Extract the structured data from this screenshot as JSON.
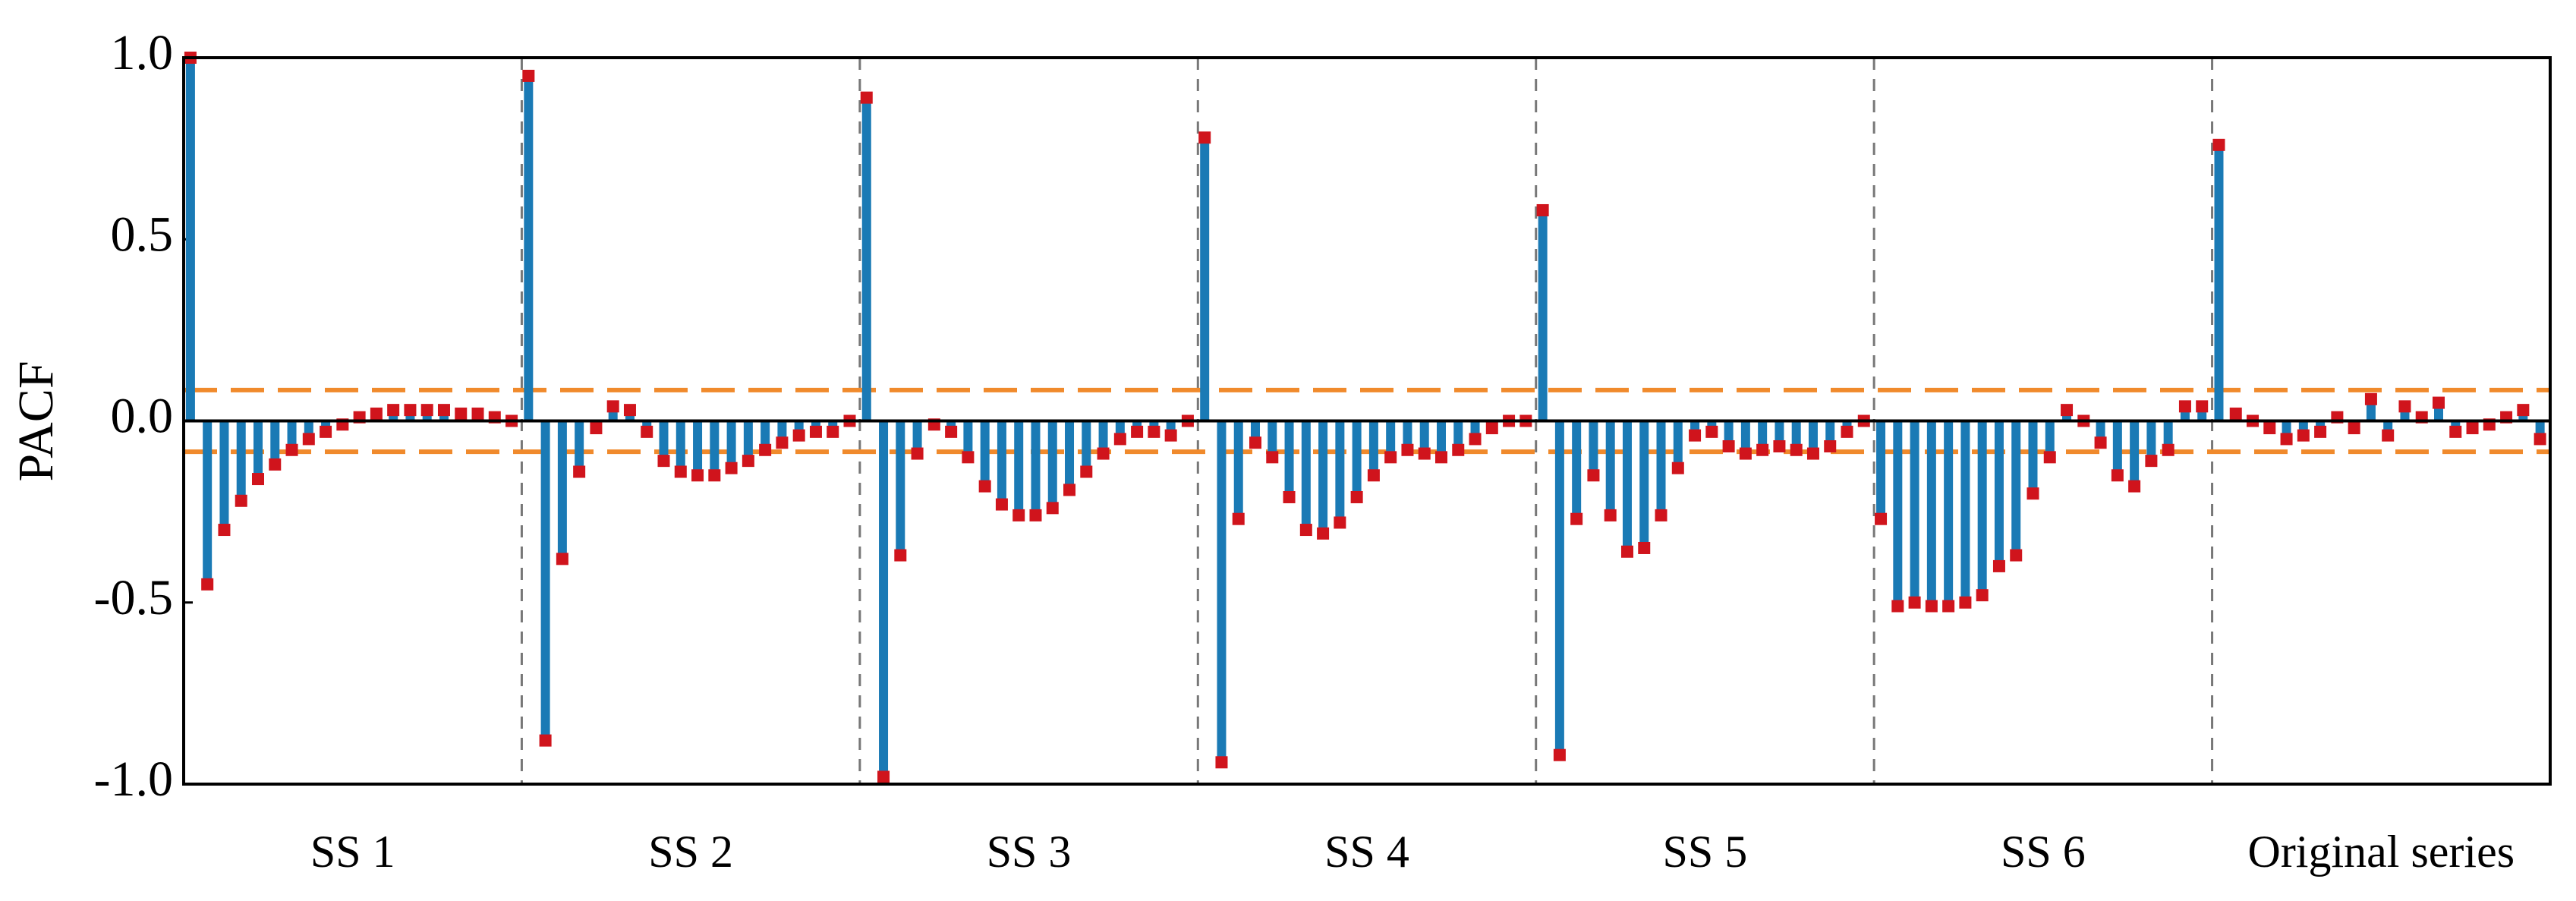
{
  "chart_data": {
    "type": "bar",
    "ylabel": "PACF",
    "ylim": [
      -1,
      1
    ],
    "yticks": [
      {
        "value": -1,
        "label": "-1.0"
      },
      {
        "value": -0.5,
        "label": "-0.5"
      },
      {
        "value": 0,
        "label": "0.0"
      },
      {
        "value": 0.5,
        "label": "0.5"
      },
      {
        "value": 1,
        "label": "1.0"
      }
    ],
    "bar_color": "#1a7ab5",
    "marker_color": "#d0141c",
    "confidence_bounds": [
      0.085,
      -0.085
    ],
    "confidence_color": "#f08a2c",
    "series": [
      {
        "name": "SS 1",
        "values": [
          1.0,
          -0.45,
          -0.3,
          -0.22,
          -0.16,
          -0.12,
          -0.08,
          -0.05,
          -0.03,
          -0.01,
          0.01,
          0.02,
          0.03,
          0.03,
          0.03,
          0.03,
          0.02,
          0.02,
          0.01,
          0.0
        ]
      },
      {
        "name": "SS 2",
        "values": [
          0.95,
          -0.88,
          -0.38,
          -0.14,
          -0.02,
          0.04,
          0.03,
          -0.03,
          -0.11,
          -0.14,
          -0.15,
          -0.15,
          -0.13,
          -0.11,
          -0.08,
          -0.06,
          -0.04,
          -0.03,
          -0.03,
          0.0
        ]
      },
      {
        "name": "SS 3",
        "values": [
          0.89,
          -0.98,
          -0.37,
          -0.09,
          -0.01,
          -0.03,
          -0.1,
          -0.18,
          -0.23,
          -0.26,
          -0.26,
          -0.24,
          -0.19,
          -0.14,
          -0.09,
          -0.05,
          -0.03,
          -0.03,
          -0.04,
          0.0
        ]
      },
      {
        "name": "SS 4",
        "values": [
          0.78,
          -0.94,
          -0.27,
          -0.06,
          -0.1,
          -0.21,
          -0.3,
          -0.31,
          -0.28,
          -0.21,
          -0.15,
          -0.1,
          -0.08,
          -0.09,
          -0.1,
          -0.08,
          -0.05,
          -0.02,
          0.0,
          0.0
        ]
      },
      {
        "name": "SS 5",
        "values": [
          0.58,
          -0.92,
          -0.27,
          -0.15,
          -0.26,
          -0.36,
          -0.35,
          -0.26,
          -0.13,
          -0.04,
          -0.03,
          -0.07,
          -0.09,
          -0.08,
          -0.07,
          -0.08,
          -0.09,
          -0.07,
          -0.03,
          0.0
        ]
      },
      {
        "name": "SS 6",
        "values": [
          -0.27,
          -0.51,
          -0.5,
          -0.51,
          -0.51,
          -0.5,
          -0.48,
          -0.4,
          -0.37,
          -0.2,
          -0.1,
          0.03,
          0.0,
          -0.06,
          -0.15,
          -0.18,
          -0.11,
          -0.08,
          0.04,
          0.04
        ]
      },
      {
        "name": "Original series",
        "values": [
          0.76,
          0.02,
          0.0,
          -0.02,
          -0.05,
          -0.04,
          -0.03,
          0.01,
          -0.02,
          0.06,
          -0.04,
          0.04,
          0.01,
          0.05,
          -0.03,
          -0.02,
          -0.01,
          0.01,
          0.03,
          -0.05
        ]
      }
    ]
  }
}
